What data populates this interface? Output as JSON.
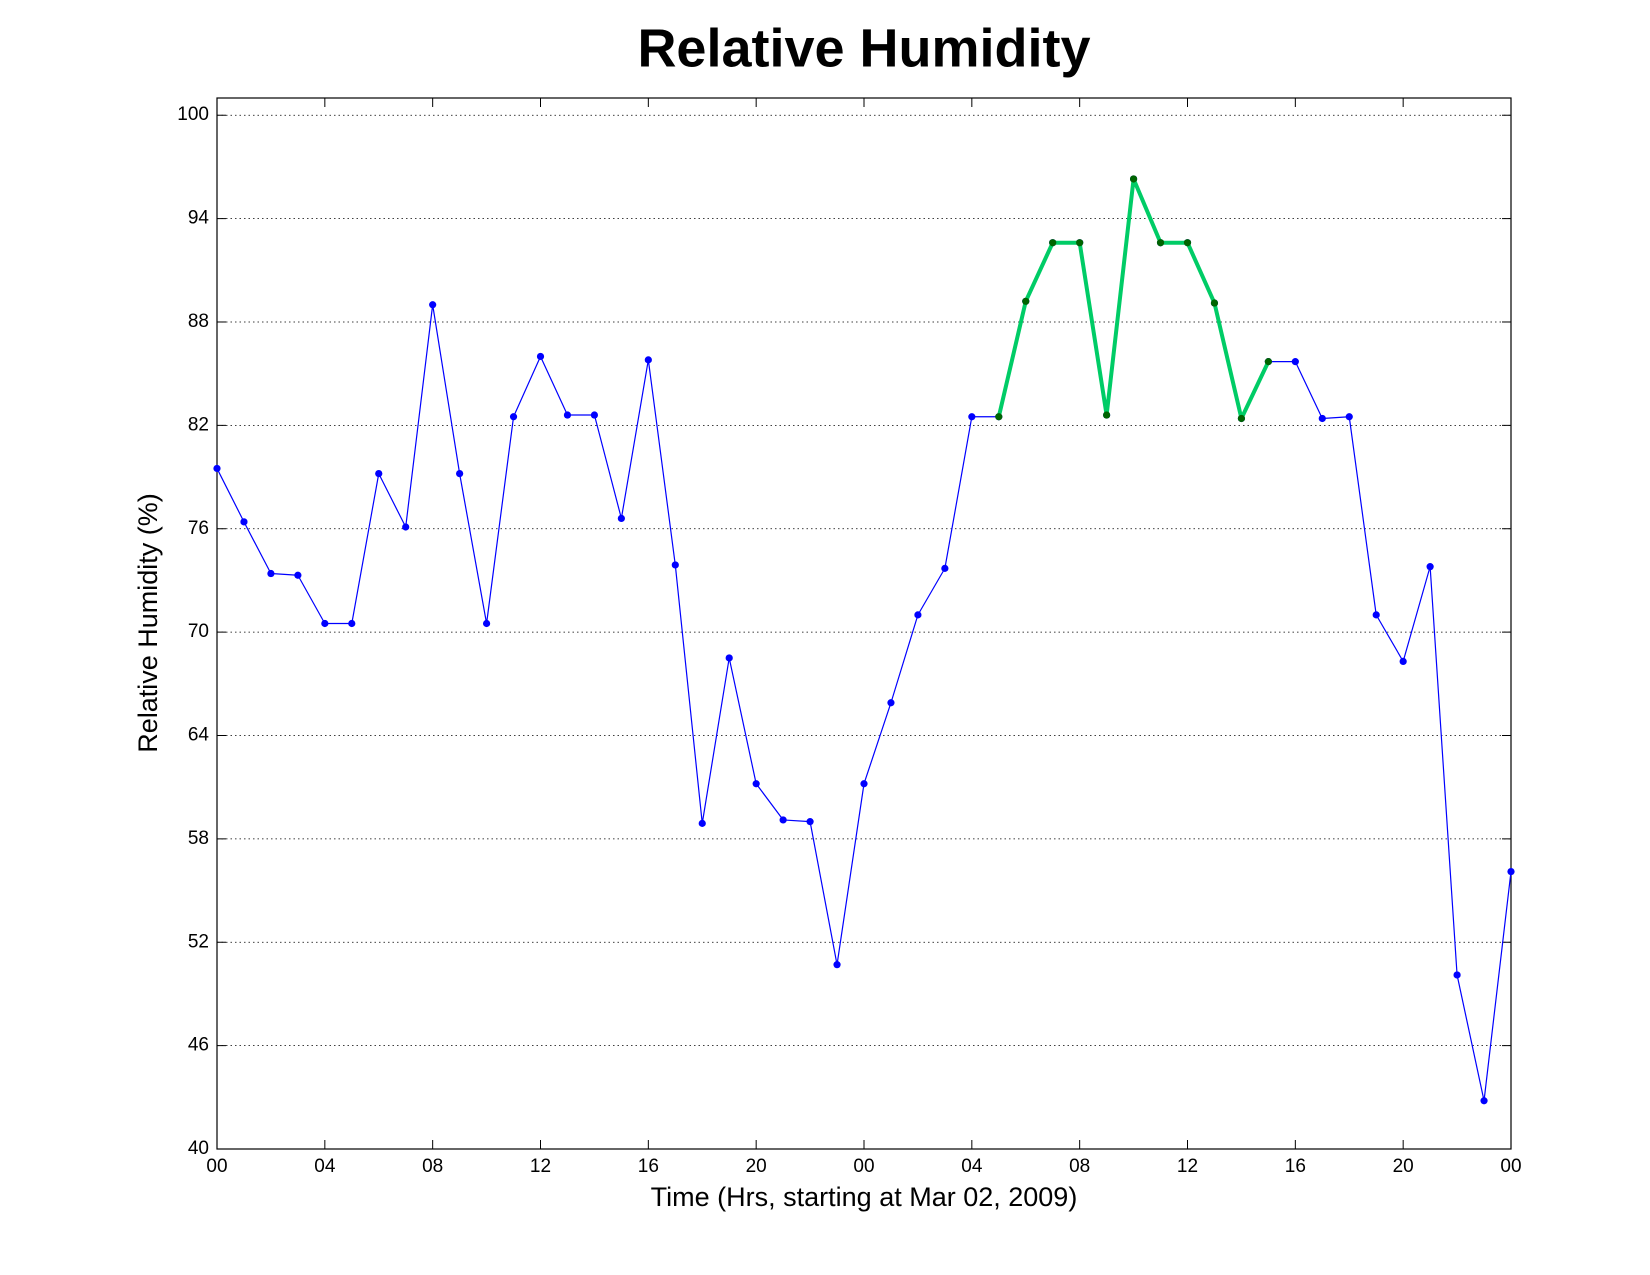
{
  "chart_data": {
    "type": "line",
    "title": "Relative Humidity",
    "xlabel": "Time (Hrs, starting at Mar 02, 2009)",
    "ylabel": "Relative Humidity (%)",
    "x": [
      0,
      1,
      2,
      3,
      4,
      5,
      6,
      7,
      8,
      9,
      10,
      11,
      12,
      13,
      14,
      15,
      16,
      17,
      18,
      19,
      20,
      21,
      22,
      23,
      24,
      25,
      26,
      27,
      28,
      29,
      30,
      31,
      32,
      33,
      34,
      35,
      36,
      37,
      38,
      39,
      40,
      41,
      42,
      43,
      44,
      45,
      46,
      47,
      48
    ],
    "series": [
      {
        "color": "#0000ff",
        "marker_color": "#0000ff",
        "line_width": 1.2,
        "values": [
          79.5,
          76.4,
          73.4,
          73.3,
          70.5,
          70.5,
          79.2,
          76.1,
          89.0,
          79.2,
          70.5,
          82.5,
          86.0,
          82.6,
          82.6,
          76.6,
          85.8,
          73.9,
          58.9,
          68.5,
          61.2,
          59.1,
          59.0,
          50.7,
          61.2,
          65.9,
          71.0,
          73.7,
          82.5,
          82.5,
          89.2,
          92.6,
          92.6,
          82.6,
          96.3,
          92.6,
          92.6,
          89.1,
          82.4,
          85.7,
          85.7,
          82.4,
          82.5,
          71.0,
          68.3,
          73.8,
          50.1,
          42.8,
          56.1
        ]
      },
      {
        "color": "#00cc66",
        "marker_color": "#006400",
        "line_width": 4,
        "values": [
          null,
          null,
          null,
          null,
          null,
          null,
          null,
          null,
          null,
          null,
          null,
          null,
          null,
          null,
          null,
          null,
          null,
          null,
          null,
          null,
          null,
          null,
          null,
          null,
          null,
          null,
          null,
          null,
          null,
          82.5,
          89.2,
          92.6,
          92.6,
          82.6,
          96.3,
          92.6,
          92.6,
          89.1,
          82.4,
          85.7,
          null,
          null,
          null,
          null,
          null,
          null,
          null,
          null,
          null
        ]
      }
    ],
    "xlim": [
      0,
      48
    ],
    "xticks": [
      {
        "value": 0,
        "label": "00"
      },
      {
        "value": 4,
        "label": "04"
      },
      {
        "value": 8,
        "label": "08"
      },
      {
        "value": 12,
        "label": "12"
      },
      {
        "value": 16,
        "label": "16"
      },
      {
        "value": 20,
        "label": "20"
      },
      {
        "value": 24,
        "label": "00"
      },
      {
        "value": 28,
        "label": "04"
      },
      {
        "value": 32,
        "label": "08"
      },
      {
        "value": 36,
        "label": "12"
      },
      {
        "value": 40,
        "label": "16"
      },
      {
        "value": 44,
        "label": "20"
      },
      {
        "value": 48,
        "label": "00"
      }
    ],
    "ylim": [
      40,
      101
    ],
    "yticks": [
      40,
      46,
      52,
      58,
      64,
      70,
      76,
      82,
      88,
      94,
      100
    ],
    "grid": "y"
  }
}
